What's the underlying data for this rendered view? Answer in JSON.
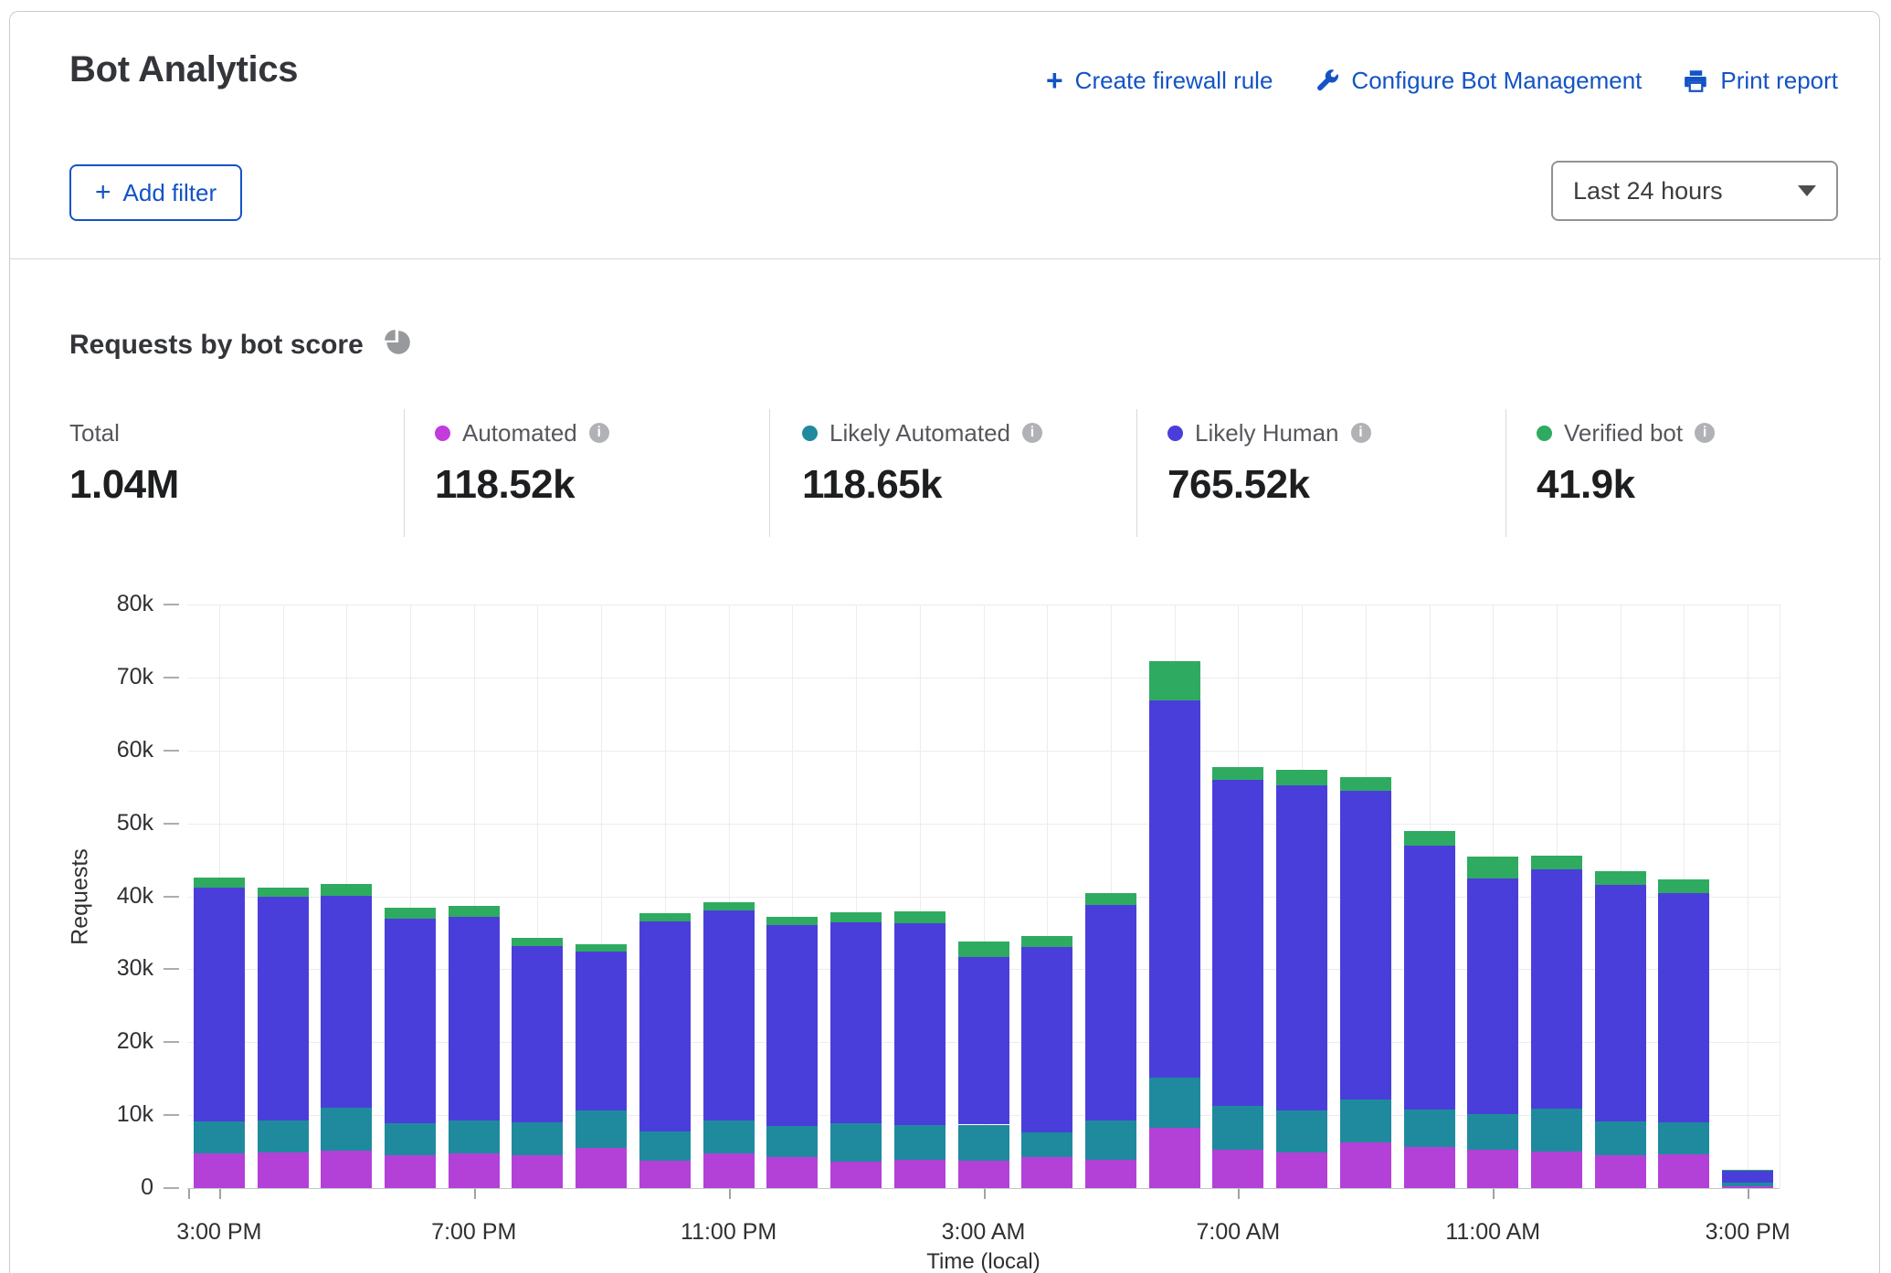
{
  "header": {
    "title": "Bot Analytics",
    "actions": [
      {
        "label": "Create firewall rule",
        "icon": "plus-icon"
      },
      {
        "label": "Configure Bot Management",
        "icon": "wrench-icon"
      },
      {
        "label": "Print report",
        "icon": "printer-icon"
      }
    ],
    "add_filter_label": "Add filter",
    "time_range": "Last 24 hours"
  },
  "section": {
    "title": "Requests by bot score",
    "icon": "pie-chart-icon"
  },
  "stats": [
    {
      "label": "Total",
      "value": "1.04M",
      "color": null,
      "info": false
    },
    {
      "label": "Automated",
      "value": "118.52k",
      "color": "#c23bdd",
      "info": true
    },
    {
      "label": "Likely Automated",
      "value": "118.65k",
      "color": "#1f8a9e",
      "info": true
    },
    {
      "label": "Likely Human",
      "value": "765.52k",
      "color": "#4a3edb",
      "info": true
    },
    {
      "label": "Verified bot",
      "value": "41.9k",
      "color": "#2eab60",
      "info": true
    }
  ],
  "chart_data": {
    "type": "bar",
    "stacked": true,
    "title": "Requests by bot score",
    "xlabel": "Time (local)",
    "ylabel": "Requests",
    "ylim": [
      0,
      80000
    ],
    "ytick_values": [
      0,
      10000,
      20000,
      30000,
      40000,
      50000,
      60000,
      70000,
      80000
    ],
    "ytick_labels": [
      "0",
      "10k",
      "20k",
      "30k",
      "40k",
      "50k",
      "60k",
      "70k",
      "80k"
    ],
    "grid": true,
    "legend_position": "top",
    "categories": [
      "3:00 PM",
      "4:00 PM",
      "5:00 PM",
      "6:00 PM",
      "7:00 PM",
      "8:00 PM",
      "9:00 PM",
      "10:00 PM",
      "11:00 PM",
      "12:00 AM",
      "1:00 AM",
      "2:00 AM",
      "3:00 AM",
      "4:00 AM",
      "5:00 AM",
      "6:00 AM",
      "7:00 AM",
      "8:00 AM",
      "9:00 AM",
      "10:00 AM",
      "11:00 AM",
      "12:00 PM",
      "1:00 PM",
      "2:00 PM",
      "3:00 PM"
    ],
    "xticks": [
      {
        "index": 0,
        "label": "3:00 PM"
      },
      {
        "index": 4,
        "label": "7:00 PM"
      },
      {
        "index": 8,
        "label": "11:00 PM"
      },
      {
        "index": 12,
        "label": "3:00 AM"
      },
      {
        "index": 16,
        "label": "7:00 AM"
      },
      {
        "index": 20,
        "label": "11:00 AM"
      },
      {
        "index": 24,
        "label": "3:00 PM"
      }
    ],
    "series": [
      {
        "name": "Automated",
        "color": "#b341d8",
        "values": [
          4700,
          4900,
          5100,
          4500,
          4800,
          4500,
          5500,
          3800,
          4700,
          4200,
          3600,
          3900,
          3700,
          4200,
          3900,
          8300,
          5300,
          4900,
          6200,
          5600,
          5300,
          5000,
          4500,
          4600,
          300
        ]
      },
      {
        "name": "Likely Automated",
        "color": "#1f8a9e",
        "values": [
          4400,
          4400,
          5900,
          4400,
          4500,
          4500,
          5100,
          4000,
          4600,
          4300,
          5300,
          4700,
          5000,
          3400,
          5400,
          6800,
          6000,
          5700,
          5900,
          5200,
          4800,
          5900,
          4700,
          4400,
          400
        ]
      },
      {
        "name": "Likely Human",
        "color": "#4a3edb",
        "values": [
          32100,
          30600,
          29100,
          28000,
          27900,
          24200,
          21800,
          28700,
          28800,
          27500,
          27500,
          27700,
          23000,
          25400,
          29500,
          51700,
          44700,
          44600,
          42400,
          36200,
          32300,
          32800,
          32400,
          31400,
          1700
        ]
      },
      {
        "name": "Verified bot",
        "color": "#2eab60",
        "values": [
          1400,
          1300,
          1600,
          1500,
          1500,
          1100,
          1000,
          1200,
          1100,
          1200,
          1400,
          1600,
          2100,
          1500,
          1600,
          5500,
          1700,
          2100,
          1900,
          1900,
          3100,
          1900,
          1800,
          1900,
          100
        ]
      }
    ]
  }
}
